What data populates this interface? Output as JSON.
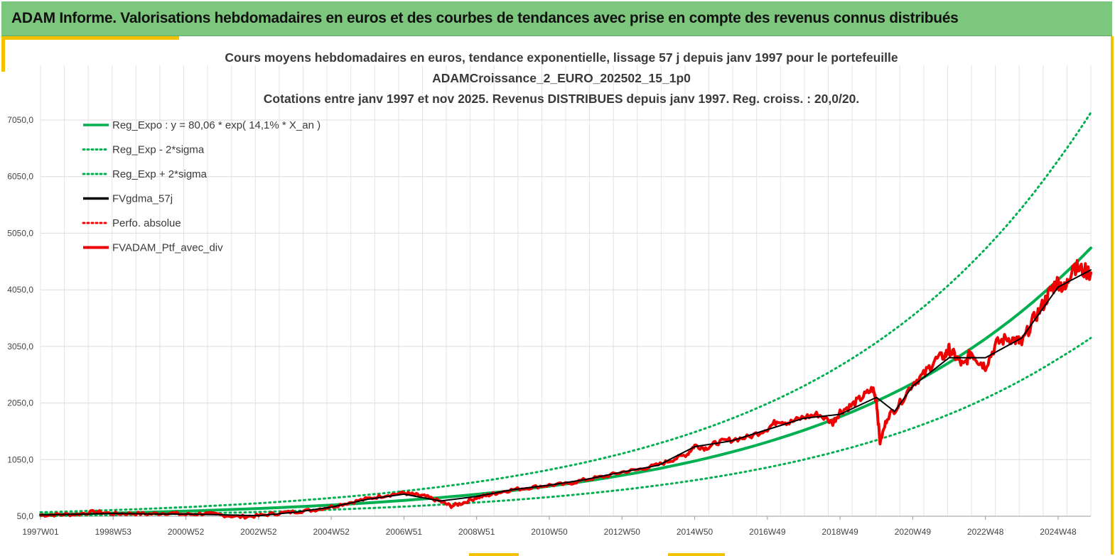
{
  "banner": {
    "title": "ADAM Informe. Valorisations hebdomadaires en euros et des courbes de tendances avec prise en compte des revenus connus distribués"
  },
  "colors": {
    "banner": "#7dc67d",
    "accent": "#f2c200",
    "reg_expo": "#00b050",
    "fv_gdma": "#000000",
    "portfolio": "#ee0000"
  },
  "chart_data": {
    "type": "line",
    "title_lines": [
      "Cours moyens hebdomadaires  en euros, tendance exponentielle, lissage 57 j depuis janv 1997 pour le portefeuille",
      "ADAMCroissance_2_EURO_202502_15_1p0",
      "Cotations  entre janv 1997 et nov  2025. Revenus DISTRIBUES depuis janv 1997. Reg. croiss. : 20,0/20."
    ],
    "x_range": [
      1997.0,
      2025.9
    ],
    "ylim": [
      50,
      7500
    ],
    "y_ticks": [
      "50,0",
      "1050,0",
      "2050,0",
      "3050,0",
      "4050,0",
      "5050,0",
      "6050,0",
      "7050,0"
    ],
    "y_tick_values": [
      50,
      1050,
      2050,
      3050,
      4050,
      5050,
      6050,
      7050
    ],
    "x_ticks": [
      "1997W01",
      "1998W53",
      "2000W52",
      "2002W52",
      "2004W52",
      "2006W51",
      "2008W51",
      "2010W50",
      "2012W50",
      "2014W50",
      "2016W49",
      "2018W49",
      "2020W49",
      "2022W48",
      "2024W48"
    ],
    "x_tick_values": [
      1997.0,
      1999.0,
      2001.0,
      2003.0,
      2005.0,
      2007.0,
      2009.0,
      2011.0,
      2013.0,
      2015.0,
      2017.0,
      2019.0,
      2021.0,
      2023.0,
      2025.0
    ],
    "grid": true,
    "legend_position": "top-left",
    "legend": [
      {
        "label": "Reg_Expo : y = 80,06 * exp( 14,1% *  X_an )",
        "style": "solid",
        "color": "#00b050"
      },
      {
        "label": "Reg_Exp - 2*sigma",
        "style": "dotted",
        "color": "#00b050"
      },
      {
        "label": "Reg_Exp + 2*sigma",
        "style": "dotted",
        "color": "#00b050"
      },
      {
        "label": "FVgdma_57j",
        "style": "solid",
        "color": "#000000"
      },
      {
        "label": "Perfo. absolue",
        "style": "dotted",
        "color": "#ee0000"
      },
      {
        "label": "FVADAM_Ptf_avec_div",
        "style": "solid-thick",
        "color": "#ee0000"
      }
    ],
    "series": [
      {
        "name": "Reg_Expo",
        "x": [
          1997.0,
          1999.0,
          2001.0,
          2003.0,
          2005.0,
          2007.0,
          2009.0,
          2011.0,
          2013.0,
          2015.0,
          2017.0,
          2019.0,
          2021.0,
          2023.0,
          2025.0,
          2025.9
        ],
        "y": [
          80,
          106,
          141,
          187,
          248,
          330,
          438,
          582,
          772,
          1025,
          1361,
          1807,
          2399,
          3185,
          4229,
          4790
        ]
      },
      {
        "name": "Reg_Exp - 2*sigma",
        "x": [
          1997.0,
          1999.0,
          2001.0,
          2003.0,
          2005.0,
          2007.0,
          2009.0,
          2011.0,
          2013.0,
          2015.0,
          2017.0,
          2019.0,
          2021.0,
          2023.0,
          2025.0,
          2025.9
        ],
        "y": [
          54,
          71,
          94,
          125,
          166,
          221,
          293,
          389,
          517,
          686,
          911,
          1210,
          1606,
          2132,
          2831,
          3200
        ]
      },
      {
        "name": "Reg_Exp + 2*sigma",
        "x": [
          1997.0,
          1999.0,
          2001.0,
          2003.0,
          2005.0,
          2007.0,
          2009.0,
          2011.0,
          2013.0,
          2015.0,
          2017.0,
          2019.0,
          2021.0,
          2023.0,
          2025.0,
          2025.9
        ],
        "y": [
          120,
          159,
          211,
          280,
          372,
          494,
          656,
          871,
          1157,
          1536,
          2039,
          2707,
          3594,
          4772,
          6336,
          7180
        ]
      },
      {
        "name": "FVADAM_Ptf_avec_div",
        "x": [
          1997.0,
          1997.5,
          1998.0,
          1998.5,
          1999.0,
          1999.5,
          2000.0,
          2000.5,
          2001.0,
          2001.5,
          2002.0,
          2002.5,
          2003.0,
          2003.5,
          2004.0,
          2004.5,
          2005.0,
          2005.5,
          2006.0,
          2006.5,
          2007.0,
          2007.3,
          2007.6,
          2008.0,
          2008.3,
          2008.6,
          2009.0,
          2009.3,
          2009.6,
          2010.0,
          2010.5,
          2011.0,
          2011.5,
          2012.0,
          2012.5,
          2013.0,
          2013.5,
          2014.0,
          2014.4,
          2014.8,
          2015.0,
          2015.3,
          2015.6,
          2016.0,
          2016.5,
          2017.0,
          2017.3,
          2017.6,
          2018.0,
          2018.4,
          2018.8,
          2019.0,
          2019.3,
          2019.6,
          2019.9,
          2020.0,
          2020.1,
          2020.3,
          2020.6,
          2021.0,
          2021.3,
          2021.6,
          2021.9,
          2022.0,
          2022.2,
          2022.4,
          2022.6,
          2022.8,
          2023.0,
          2023.3,
          2023.6,
          2023.9,
          2024.0,
          2024.3,
          2024.6,
          2024.8,
          2025.0,
          2025.2,
          2025.4,
          2025.6,
          2025.9
        ],
        "y": [
          70,
          80,
          85,
          130,
          95,
          100,
          90,
          110,
          80,
          100,
          70,
          40,
          60,
          100,
          130,
          160,
          220,
          290,
          360,
          420,
          460,
          430,
          400,
          310,
          230,
          280,
          380,
          420,
          470,
          520,
          560,
          600,
          620,
          700,
          750,
          830,
          880,
          960,
          1050,
          1150,
          1300,
          1250,
          1350,
          1400,
          1450,
          1600,
          1750,
          1700,
          1800,
          1850,
          1700,
          1900,
          2000,
          2150,
          2300,
          2100,
          1350,
          1800,
          2000,
          2400,
          2550,
          2800,
          2900,
          3000,
          2850,
          2700,
          2950,
          2800,
          2700,
          3100,
          3200,
          3150,
          3100,
          3500,
          3800,
          4050,
          4200,
          4050,
          4500,
          4400,
          4350
        ]
      },
      {
        "name": "FVgdma_57j",
        "x": [
          1997.0,
          1998.0,
          1999.0,
          2000.0,
          2001.0,
          2002.0,
          2003.0,
          2004.0,
          2005.0,
          2006.0,
          2007.0,
          2008.0,
          2009.0,
          2010.0,
          2011.0,
          2012.0,
          2013.0,
          2014.0,
          2015.0,
          2016.0,
          2017.0,
          2018.0,
          2019.0,
          2020.0,
          2020.5,
          2021.0,
          2022.0,
          2023.0,
          2024.0,
          2025.0,
          2025.9
        ],
        "y": [
          72,
          85,
          100,
          92,
          88,
          75,
          60,
          120,
          210,
          350,
          440,
          320,
          400,
          520,
          600,
          700,
          830,
          950,
          1280,
          1380,
          1580,
          1780,
          1850,
          2150,
          1900,
          2350,
          2850,
          2850,
          3200,
          4100,
          4400
        ]
      }
    ]
  }
}
